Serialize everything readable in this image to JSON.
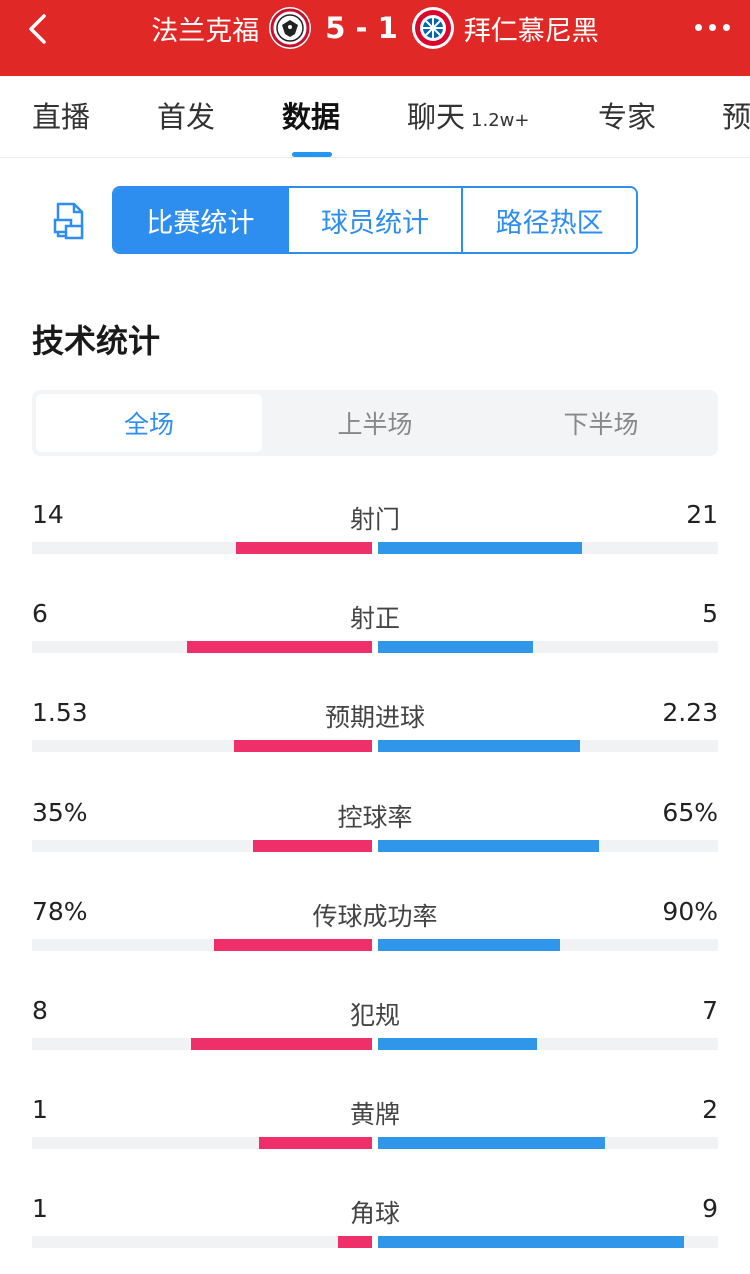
{
  "header": {
    "home_team": "法兰克福",
    "score": "5 - 1",
    "away_team": "拜仁慕尼黑",
    "back_icon": "chevron-left-icon",
    "more_icon": "more-dots-icon",
    "bg_color": "#e02826"
  },
  "tabs": [
    {
      "label": "直播",
      "badge": ""
    },
    {
      "label": "首发",
      "badge": ""
    },
    {
      "label": "数据",
      "badge": ""
    },
    {
      "label": "聊天",
      "badge": "1.2w+"
    },
    {
      "label": "专家",
      "badge": ""
    },
    {
      "label": "预",
      "badge": ""
    }
  ],
  "active_tab": "数据",
  "stat_types": [
    "比赛统计",
    "球员统计",
    "路径热区"
  ],
  "active_stat_type": "比赛统计",
  "section_title": "技术统计",
  "periods": [
    "全场",
    "上半场",
    "下半场"
  ],
  "active_period": "全场",
  "colors": {
    "home": "#ee2f6a",
    "away": "#2f96ea",
    "accent": "#2d8ef0"
  },
  "stats": [
    {
      "label": "射门",
      "home": "14",
      "away": "21",
      "home_frac": 0.4,
      "away_frac": 0.6
    },
    {
      "label": "射正",
      "home": "6",
      "away": "5",
      "home_frac": 0.545,
      "away_frac": 0.455
    },
    {
      "label": "预期进球",
      "home": "1.53",
      "away": "2.23",
      "home_frac": 0.407,
      "away_frac": 0.593
    },
    {
      "label": "控球率",
      "home": "35%",
      "away": "65%",
      "home_frac": 0.35,
      "away_frac": 0.65
    },
    {
      "label": "传球成功率",
      "home": "78%",
      "away": "90%",
      "home_frac": 0.464,
      "away_frac": 0.536
    },
    {
      "label": "犯规",
      "home": "8",
      "away": "7",
      "home_frac": 0.533,
      "away_frac": 0.467
    },
    {
      "label": "黄牌",
      "home": "1",
      "away": "2",
      "home_frac": 0.333,
      "away_frac": 0.667
    },
    {
      "label": "角球",
      "home": "1",
      "away": "9",
      "home_frac": 0.1,
      "away_frac": 0.9
    }
  ]
}
